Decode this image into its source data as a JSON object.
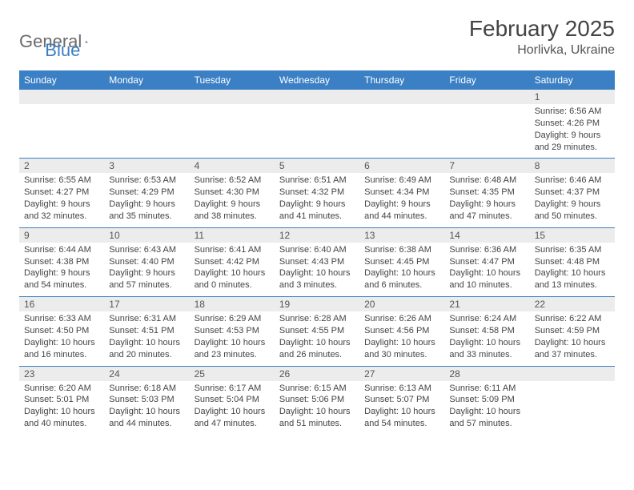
{
  "logo": {
    "text1": "General",
    "text2": "Blue"
  },
  "title": "February 2025",
  "location": "Horlivka, Ukraine",
  "colors": {
    "headerBg": "#3b7fc4",
    "headerText": "#ffffff",
    "dayNumBg": "#ececec",
    "borderTop": "#3b7fc4",
    "bodyText": "#444444",
    "logoGray": "#6b6b6b",
    "logoBlue": "#3b7fc4"
  },
  "dayNames": [
    "Sunday",
    "Monday",
    "Tuesday",
    "Wednesday",
    "Thursday",
    "Friday",
    "Saturday"
  ],
  "weeks": [
    [
      {
        "empty": true
      },
      {
        "empty": true
      },
      {
        "empty": true
      },
      {
        "empty": true
      },
      {
        "empty": true
      },
      {
        "empty": true
      },
      {
        "num": "1",
        "sunrise": "Sunrise: 6:56 AM",
        "sunset": "Sunset: 4:26 PM",
        "daylight": "Daylight: 9 hours and 29 minutes."
      }
    ],
    [
      {
        "num": "2",
        "sunrise": "Sunrise: 6:55 AM",
        "sunset": "Sunset: 4:27 PM",
        "daylight": "Daylight: 9 hours and 32 minutes."
      },
      {
        "num": "3",
        "sunrise": "Sunrise: 6:53 AM",
        "sunset": "Sunset: 4:29 PM",
        "daylight": "Daylight: 9 hours and 35 minutes."
      },
      {
        "num": "4",
        "sunrise": "Sunrise: 6:52 AM",
        "sunset": "Sunset: 4:30 PM",
        "daylight": "Daylight: 9 hours and 38 minutes."
      },
      {
        "num": "5",
        "sunrise": "Sunrise: 6:51 AM",
        "sunset": "Sunset: 4:32 PM",
        "daylight": "Daylight: 9 hours and 41 minutes."
      },
      {
        "num": "6",
        "sunrise": "Sunrise: 6:49 AM",
        "sunset": "Sunset: 4:34 PM",
        "daylight": "Daylight: 9 hours and 44 minutes."
      },
      {
        "num": "7",
        "sunrise": "Sunrise: 6:48 AM",
        "sunset": "Sunset: 4:35 PM",
        "daylight": "Daylight: 9 hours and 47 minutes."
      },
      {
        "num": "8",
        "sunrise": "Sunrise: 6:46 AM",
        "sunset": "Sunset: 4:37 PM",
        "daylight": "Daylight: 9 hours and 50 minutes."
      }
    ],
    [
      {
        "num": "9",
        "sunrise": "Sunrise: 6:44 AM",
        "sunset": "Sunset: 4:38 PM",
        "daylight": "Daylight: 9 hours and 54 minutes."
      },
      {
        "num": "10",
        "sunrise": "Sunrise: 6:43 AM",
        "sunset": "Sunset: 4:40 PM",
        "daylight": "Daylight: 9 hours and 57 minutes."
      },
      {
        "num": "11",
        "sunrise": "Sunrise: 6:41 AM",
        "sunset": "Sunset: 4:42 PM",
        "daylight": "Daylight: 10 hours and 0 minutes."
      },
      {
        "num": "12",
        "sunrise": "Sunrise: 6:40 AM",
        "sunset": "Sunset: 4:43 PM",
        "daylight": "Daylight: 10 hours and 3 minutes."
      },
      {
        "num": "13",
        "sunrise": "Sunrise: 6:38 AM",
        "sunset": "Sunset: 4:45 PM",
        "daylight": "Daylight: 10 hours and 6 minutes."
      },
      {
        "num": "14",
        "sunrise": "Sunrise: 6:36 AM",
        "sunset": "Sunset: 4:47 PM",
        "daylight": "Daylight: 10 hours and 10 minutes."
      },
      {
        "num": "15",
        "sunrise": "Sunrise: 6:35 AM",
        "sunset": "Sunset: 4:48 PM",
        "daylight": "Daylight: 10 hours and 13 minutes."
      }
    ],
    [
      {
        "num": "16",
        "sunrise": "Sunrise: 6:33 AM",
        "sunset": "Sunset: 4:50 PM",
        "daylight": "Daylight: 10 hours and 16 minutes."
      },
      {
        "num": "17",
        "sunrise": "Sunrise: 6:31 AM",
        "sunset": "Sunset: 4:51 PM",
        "daylight": "Daylight: 10 hours and 20 minutes."
      },
      {
        "num": "18",
        "sunrise": "Sunrise: 6:29 AM",
        "sunset": "Sunset: 4:53 PM",
        "daylight": "Daylight: 10 hours and 23 minutes."
      },
      {
        "num": "19",
        "sunrise": "Sunrise: 6:28 AM",
        "sunset": "Sunset: 4:55 PM",
        "daylight": "Daylight: 10 hours and 26 minutes."
      },
      {
        "num": "20",
        "sunrise": "Sunrise: 6:26 AM",
        "sunset": "Sunset: 4:56 PM",
        "daylight": "Daylight: 10 hours and 30 minutes."
      },
      {
        "num": "21",
        "sunrise": "Sunrise: 6:24 AM",
        "sunset": "Sunset: 4:58 PM",
        "daylight": "Daylight: 10 hours and 33 minutes."
      },
      {
        "num": "22",
        "sunrise": "Sunrise: 6:22 AM",
        "sunset": "Sunset: 4:59 PM",
        "daylight": "Daylight: 10 hours and 37 minutes."
      }
    ],
    [
      {
        "num": "23",
        "sunrise": "Sunrise: 6:20 AM",
        "sunset": "Sunset: 5:01 PM",
        "daylight": "Daylight: 10 hours and 40 minutes."
      },
      {
        "num": "24",
        "sunrise": "Sunrise: 6:18 AM",
        "sunset": "Sunset: 5:03 PM",
        "daylight": "Daylight: 10 hours and 44 minutes."
      },
      {
        "num": "25",
        "sunrise": "Sunrise: 6:17 AM",
        "sunset": "Sunset: 5:04 PM",
        "daylight": "Daylight: 10 hours and 47 minutes."
      },
      {
        "num": "26",
        "sunrise": "Sunrise: 6:15 AM",
        "sunset": "Sunset: 5:06 PM",
        "daylight": "Daylight: 10 hours and 51 minutes."
      },
      {
        "num": "27",
        "sunrise": "Sunrise: 6:13 AM",
        "sunset": "Sunset: 5:07 PM",
        "daylight": "Daylight: 10 hours and 54 minutes."
      },
      {
        "num": "28",
        "sunrise": "Sunrise: 6:11 AM",
        "sunset": "Sunset: 5:09 PM",
        "daylight": "Daylight: 10 hours and 57 minutes."
      },
      {
        "empty": true
      }
    ]
  ]
}
